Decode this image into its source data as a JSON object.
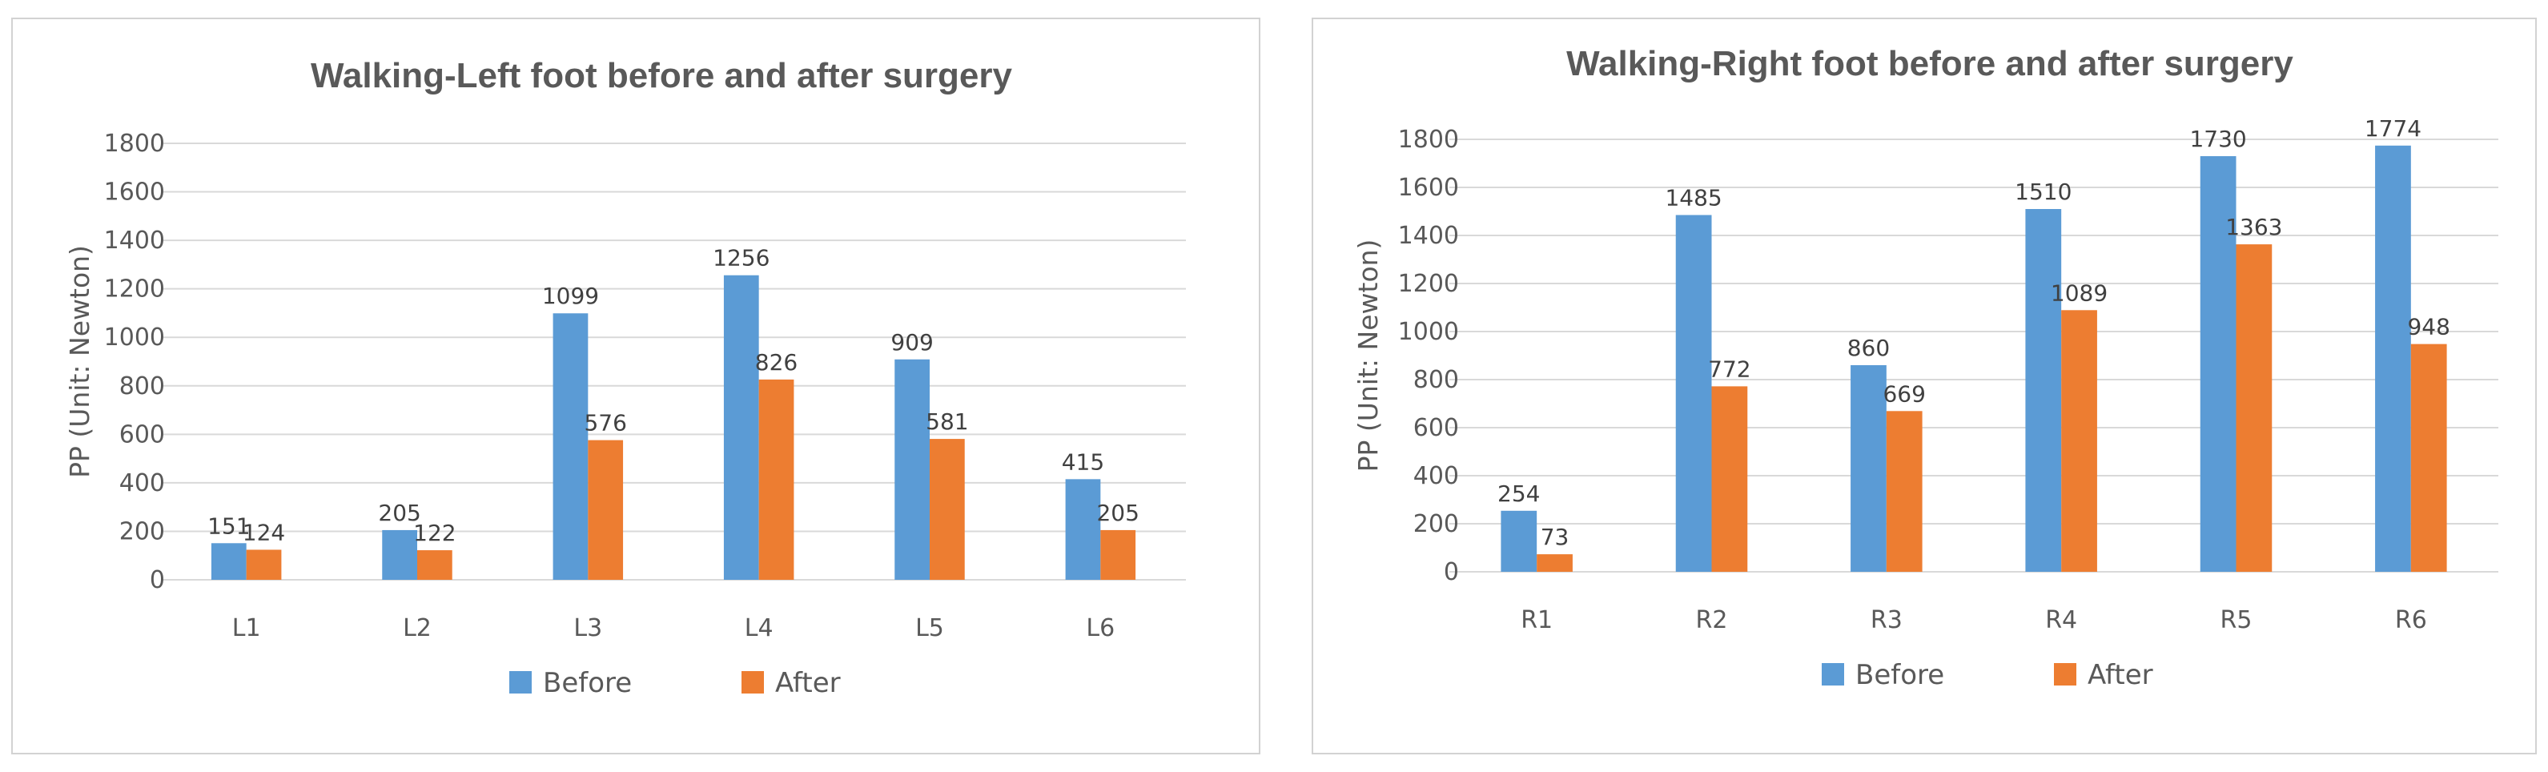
{
  "chart_data": [
    {
      "type": "bar",
      "title": "Walking-Left foot before and after surgery",
      "xlabel": "",
      "ylabel": "PP  (Unit: Newton)",
      "categories": [
        "L1",
        "L2",
        "L3",
        "L4",
        "L5",
        "L6"
      ],
      "ylim": [
        0,
        1800
      ],
      "yticks": [
        "0",
        "200",
        "400",
        "600",
        "800",
        "1000",
        "1200",
        "1400",
        "1600",
        "1800"
      ],
      "grid": true,
      "legend_position": "bottom",
      "series": [
        {
          "name": "Before",
          "color": "#5b9bd5",
          "values": [
            151,
            205,
            1099,
            1256,
            909,
            415
          ],
          "labels": [
            "151",
            "205",
            "1099",
            "1256",
            "909",
            "415"
          ]
        },
        {
          "name": "After",
          "color": "#ed7d31",
          "values": [
            124,
            122,
            576,
            826,
            581,
            205
          ],
          "labels": [
            "124",
            "122",
            "576",
            "826",
            "581",
            "205"
          ]
        }
      ]
    },
    {
      "type": "bar",
      "title": "Walking-Right foot before and after surgery",
      "xlabel": "",
      "ylabel": "PP  (Unit: Newton)",
      "categories": [
        "R1",
        "R2",
        "R3",
        "R4",
        "R5",
        "R6"
      ],
      "ylim": [
        0,
        1800
      ],
      "yticks": [
        "0",
        "200",
        "400",
        "600",
        "800",
        "1000",
        "1200",
        "1400",
        "1600",
        "1800"
      ],
      "grid": true,
      "legend_position": "bottom",
      "series": [
        {
          "name": "Before",
          "color": "#5b9bd5",
          "values": [
            254,
            1485,
            860,
            1510,
            1730,
            1774
          ],
          "labels": [
            "254",
            "1485",
            "860",
            "1510",
            "1730",
            "1774"
          ]
        },
        {
          "name": "After",
          "color": "#ed7d31",
          "values": [
            73,
            772,
            669,
            1089,
            1363,
            948
          ],
          "labels": [
            "73",
            "772",
            "669",
            "1089",
            "1363",
            "948"
          ]
        }
      ]
    }
  ]
}
